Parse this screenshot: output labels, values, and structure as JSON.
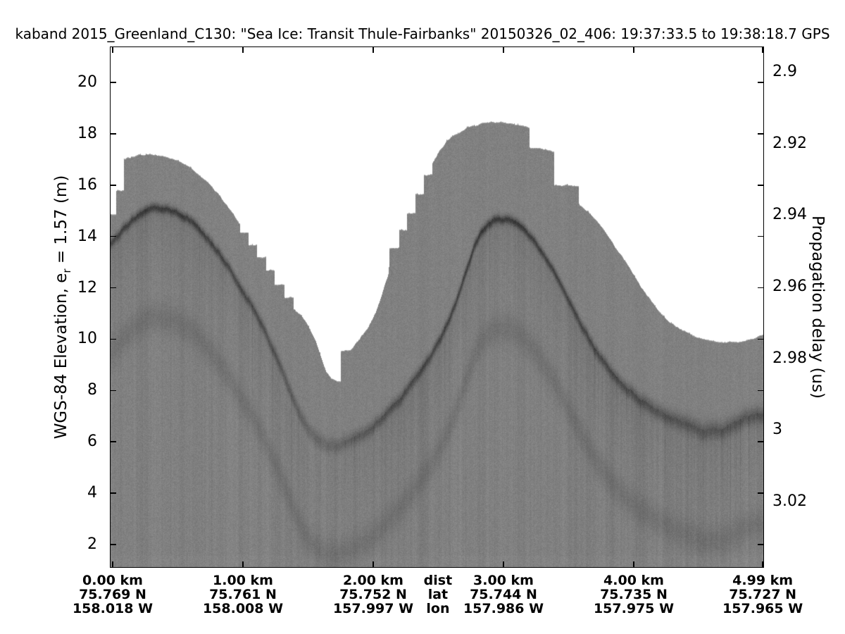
{
  "title": "kaband 2015_Greenland_C130: \"Sea Ice: Transit Thule-Fairbanks\"  20150326_02_406: 19:37:33.5 to 19:38:18.7 GPS",
  "left_axis": {
    "label_pre": "WGS-84 Elevation, e",
    "label_sub": "r",
    "label_post": " = 1.57 (m)",
    "ticks": [
      {
        "label": "20",
        "m": 20
      },
      {
        "label": "18",
        "m": 18
      },
      {
        "label": "16",
        "m": 16
      },
      {
        "label": "14",
        "m": 14
      },
      {
        "label": "12",
        "m": 12
      },
      {
        "label": "10",
        "m": 10
      },
      {
        "label": "8",
        "m": 8
      },
      {
        "label": "6",
        "m": 6
      },
      {
        "label": "4",
        "m": 4
      },
      {
        "label": "2",
        "m": 2
      }
    ]
  },
  "right_axis": {
    "label": "Propagation delay (us)",
    "ticks": [
      {
        "label": "2.9",
        "us": 2.9
      },
      {
        "label": "2.92",
        "us": 2.92
      },
      {
        "label": "2.94",
        "us": 2.94
      },
      {
        "label": "2.96",
        "us": 2.96
      },
      {
        "label": "2.98",
        "us": 2.98
      },
      {
        "label": "3",
        "us": 3.0
      },
      {
        "label": "3.02",
        "us": 3.02
      }
    ]
  },
  "bottom_axis": {
    "tick_km": [
      0,
      1,
      2,
      3,
      4,
      4.99
    ],
    "columns": [
      {
        "x_km": 0.0,
        "dist": "0.00 km",
        "lat": "75.769 N",
        "lon": "158.018 W"
      },
      {
        "x_km": 1.0,
        "dist": "1.00 km",
        "lat": "75.761 N",
        "lon": "158.008 W"
      },
      {
        "x_km": 2.0,
        "dist": "2.00 km",
        "lat": "75.752 N",
        "lon": "157.997 W"
      },
      {
        "x_km": 2.497,
        "dist": "dist",
        "lat": "lat",
        "lon": "lon"
      },
      {
        "x_km": 3.0,
        "dist": "3.00 km",
        "lat": "75.744 N",
        "lon": "157.986 W"
      },
      {
        "x_km": 4.0,
        "dist": "4.00 km",
        "lat": "75.735 N",
        "lon": "157.975 W"
      },
      {
        "x_km": 4.99,
        "dist": "4.99 km",
        "lat": "75.727 N",
        "lon": "157.965 W"
      }
    ]
  },
  "chart_data": {
    "type": "heatmap",
    "title": "kaband 2015_Greenland_C130: \"Sea Ice: Transit Thule-Fairbanks\"  20150326_02_406: 19:37:33.5 to 19:38:18.7 GPS",
    "ylabel_left": "WGS-84 Elevation, e_r = 1.57 (m)",
    "ylabel_right": "Propagation delay (us)",
    "xlabel_rows": [
      "dist",
      "lat",
      "lon"
    ],
    "x_ticks_km": [
      0.0,
      1.0,
      2.0,
      3.0,
      4.0,
      4.99
    ],
    "x_ticks_lat_N": [
      75.769,
      75.761,
      75.752,
      75.744,
      75.735,
      75.727
    ],
    "x_ticks_lon_W": [
      158.018,
      158.008,
      157.997,
      157.986,
      157.975,
      157.965
    ],
    "yticks_left_m": [
      20,
      18,
      16,
      14,
      12,
      10,
      8,
      6,
      4,
      2
    ],
    "yticks_right_us": [
      2.9,
      2.92,
      2.94,
      2.96,
      2.98,
      3,
      3.02
    ],
    "xlim_km": [
      -0.022,
      5.0
    ],
    "ylim_m": [
      1.07,
      21.4
    ],
    "colormap": "gray (radar echo strength)",
    "surface_profile": [
      [
        -0.022,
        13.8
      ],
      [
        0.081,
        14.37
      ],
      [
        0.189,
        14.9
      ],
      [
        0.27,
        15.12
      ],
      [
        0.351,
        15.2
      ],
      [
        0.432,
        15.14
      ],
      [
        0.53,
        14.92
      ],
      [
        0.622,
        14.57
      ],
      [
        0.73,
        13.99
      ],
      [
        0.838,
        13.28
      ],
      [
        0.946,
        12.4
      ],
      [
        1.054,
        11.47
      ],
      [
        1.162,
        10.42
      ],
      [
        1.27,
        9.16
      ],
      [
        1.351,
        8.17
      ],
      [
        1.432,
        7.21
      ],
      [
        1.503,
        6.47
      ],
      [
        1.568,
        6.14
      ],
      [
        1.632,
        5.98
      ],
      [
        1.703,
        5.95
      ],
      [
        1.784,
        6.03
      ],
      [
        1.892,
        6.28
      ],
      [
        2.0,
        6.69
      ],
      [
        2.108,
        7.21
      ],
      [
        2.216,
        7.82
      ],
      [
        2.324,
        8.56
      ],
      [
        2.432,
        9.35
      ],
      [
        2.514,
        10.09
      ],
      [
        2.595,
        11.0
      ],
      [
        2.66,
        11.9
      ],
      [
        2.719,
        12.84
      ],
      [
        2.773,
        13.66
      ],
      [
        2.827,
        14.24
      ],
      [
        2.881,
        14.59
      ],
      [
        2.946,
        14.76
      ],
      [
        3.016,
        14.76
      ],
      [
        3.092,
        14.59
      ],
      [
        3.162,
        14.32
      ],
      [
        3.232,
        13.93
      ],
      [
        3.308,
        13.39
      ],
      [
        3.384,
        12.7
      ],
      [
        3.459,
        11.96
      ],
      [
        3.541,
        11.14
      ],
      [
        3.622,
        10.37
      ],
      [
        3.703,
        9.63
      ],
      [
        3.784,
        9.02
      ],
      [
        3.865,
        8.5
      ],
      [
        3.946,
        8.06
      ],
      [
        4.027,
        7.71
      ],
      [
        4.135,
        7.3
      ],
      [
        4.243,
        6.97
      ],
      [
        4.351,
        6.75
      ],
      [
        4.459,
        6.56
      ],
      [
        4.568,
        6.45
      ],
      [
        4.676,
        6.53
      ],
      [
        4.784,
        6.78
      ],
      [
        4.892,
        7.0
      ],
      [
        5.0,
        7.1
      ]
    ],
    "data_top_envelope": [
      [
        -0.022,
        14.91
      ],
      [
        0.022,
        14.91
      ],
      [
        0.022,
        15.84
      ],
      [
        0.086,
        15.84
      ],
      [
        0.086,
        17.05
      ],
      [
        0.173,
        17.18
      ],
      [
        0.281,
        17.24
      ],
      [
        0.389,
        17.18
      ],
      [
        0.497,
        16.99
      ],
      [
        0.605,
        16.69
      ],
      [
        0.714,
        16.22
      ],
      [
        0.822,
        15.62
      ],
      [
        0.919,
        14.93
      ],
      [
        0.973,
        14.52
      ],
      [
        0.973,
        14.19
      ],
      [
        1.038,
        14.19
      ],
      [
        1.038,
        13.72
      ],
      [
        1.103,
        13.72
      ],
      [
        1.103,
        13.23
      ],
      [
        1.173,
        13.23
      ],
      [
        1.173,
        12.71
      ],
      [
        1.243,
        12.71
      ],
      [
        1.243,
        12.16
      ],
      [
        1.314,
        12.16
      ],
      [
        1.314,
        11.67
      ],
      [
        1.384,
        11.67
      ],
      [
        1.384,
        11.23
      ],
      [
        1.449,
        10.93
      ],
      [
        1.503,
        10.46
      ],
      [
        1.557,
        9.91
      ],
      [
        1.6,
        9.25
      ],
      [
        1.638,
        8.71
      ],
      [
        1.676,
        8.46
      ],
      [
        1.719,
        8.35
      ],
      [
        1.746,
        8.35
      ],
      [
        1.746,
        9.53
      ],
      [
        1.822,
        9.58
      ],
      [
        1.892,
        10.0
      ],
      [
        1.957,
        10.46
      ],
      [
        2.016,
        11.04
      ],
      [
        2.07,
        11.86
      ],
      [
        2.114,
        12.57
      ],
      [
        2.124,
        13.15
      ],
      [
        2.124,
        13.59
      ],
      [
        2.195,
        13.59
      ],
      [
        2.195,
        14.3
      ],
      [
        2.259,
        14.3
      ],
      [
        2.259,
        14.96
      ],
      [
        2.324,
        14.96
      ],
      [
        2.324,
        15.7
      ],
      [
        2.389,
        15.7
      ],
      [
        2.389,
        16.44
      ],
      [
        2.449,
        16.44
      ],
      [
        2.449,
        16.83
      ],
      [
        2.497,
        17.27
      ],
      [
        2.562,
        17.71
      ],
      [
        2.638,
        18.04
      ],
      [
        2.724,
        18.26
      ],
      [
        2.822,
        18.39
      ],
      [
        2.919,
        18.45
      ],
      [
        3.016,
        18.42
      ],
      [
        3.114,
        18.34
      ],
      [
        3.2,
        18.26
      ],
      [
        3.2,
        17.46
      ],
      [
        3.286,
        17.41
      ],
      [
        3.389,
        17.35
      ],
      [
        3.389,
        16.06
      ],
      [
        3.492,
        16.01
      ],
      [
        3.578,
        15.95
      ],
      [
        3.578,
        15.24
      ],
      [
        3.665,
        14.88
      ],
      [
        3.757,
        14.33
      ],
      [
        3.849,
        13.67
      ],
      [
        3.946,
        12.93
      ],
      [
        4.043,
        12.11
      ],
      [
        4.151,
        11.37
      ],
      [
        4.259,
        10.77
      ],
      [
        4.368,
        10.38
      ],
      [
        4.476,
        10.14
      ],
      [
        4.584,
        10.0
      ],
      [
        4.692,
        9.91
      ],
      [
        4.8,
        9.94
      ],
      [
        4.908,
        10.05
      ],
      [
        5.0,
        10.16
      ]
    ]
  }
}
